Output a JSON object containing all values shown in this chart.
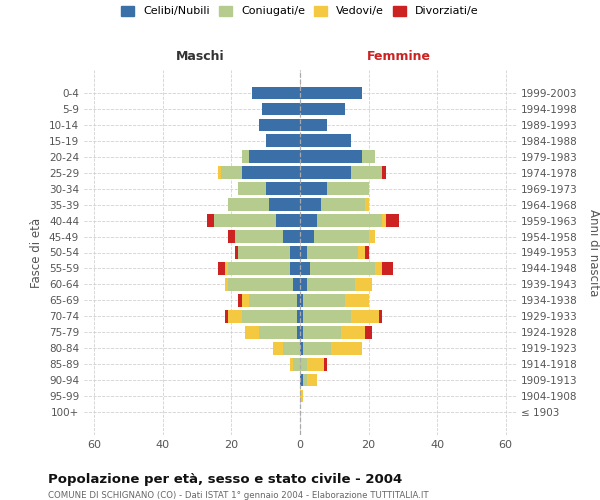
{
  "age_groups": [
    "100+",
    "95-99",
    "90-94",
    "85-89",
    "80-84",
    "75-79",
    "70-74",
    "65-69",
    "60-64",
    "55-59",
    "50-54",
    "45-49",
    "40-44",
    "35-39",
    "30-34",
    "25-29",
    "20-24",
    "15-19",
    "10-14",
    "5-9",
    "0-4"
  ],
  "birth_years": [
    "≤ 1903",
    "1904-1908",
    "1909-1913",
    "1914-1918",
    "1919-1923",
    "1924-1928",
    "1929-1933",
    "1934-1938",
    "1939-1943",
    "1944-1948",
    "1949-1953",
    "1954-1958",
    "1959-1963",
    "1964-1968",
    "1969-1973",
    "1974-1978",
    "1979-1983",
    "1984-1988",
    "1989-1993",
    "1994-1998",
    "1999-2003"
  ],
  "colors": {
    "celibi": "#3a6fa8",
    "coniugati": "#b5cc8e",
    "vedovi": "#f5c842",
    "divorziati": "#cc2222"
  },
  "males": {
    "celibi": [
      0,
      0,
      0,
      0,
      0,
      1,
      1,
      1,
      2,
      3,
      3,
      5,
      7,
      9,
      10,
      17,
      15,
      10,
      12,
      11,
      14
    ],
    "coniugati": [
      0,
      0,
      0,
      2,
      5,
      11,
      16,
      14,
      19,
      18,
      15,
      14,
      18,
      12,
      8,
      6,
      2,
      0,
      0,
      0,
      0
    ],
    "vedovi": [
      0,
      0,
      0,
      1,
      3,
      4,
      4,
      2,
      1,
      1,
      0,
      0,
      0,
      0,
      0,
      1,
      0,
      0,
      0,
      0,
      0
    ],
    "divorziati": [
      0,
      0,
      0,
      0,
      0,
      0,
      1,
      1,
      0,
      2,
      1,
      2,
      2,
      0,
      0,
      0,
      0,
      0,
      0,
      0,
      0
    ]
  },
  "females": {
    "celibi": [
      0,
      0,
      1,
      0,
      1,
      1,
      1,
      1,
      2,
      3,
      2,
      4,
      5,
      6,
      8,
      15,
      18,
      15,
      8,
      13,
      18
    ],
    "coniugati": [
      0,
      0,
      1,
      2,
      8,
      11,
      14,
      12,
      14,
      19,
      15,
      16,
      19,
      13,
      12,
      9,
      4,
      0,
      0,
      0,
      0
    ],
    "vedovi": [
      0,
      1,
      3,
      5,
      9,
      7,
      8,
      7,
      5,
      2,
      2,
      2,
      1,
      1,
      0,
      0,
      0,
      0,
      0,
      0,
      0
    ],
    "divorziati": [
      0,
      0,
      0,
      1,
      0,
      2,
      1,
      0,
      0,
      3,
      1,
      0,
      4,
      0,
      0,
      1,
      0,
      0,
      0,
      0,
      0
    ]
  },
  "xlim": 63,
  "title": "Popolazione per età, sesso e stato civile - 2004",
  "subtitle": "COMUNE DI SCHIGNANO (CO) - Dati ISTAT 1° gennaio 2004 - Elaborazione TUTTITALIA.IT",
  "xlabel_left": "Maschi",
  "xlabel_right": "Femmine",
  "ylabel_left": "Fasce di età",
  "ylabel_right": "Anni di nascita",
  "legend_labels": [
    "Celibi/Nubili",
    "Coniugati/e",
    "Vedovi/e",
    "Divorziati/e"
  ],
  "bg_color": "#ffffff",
  "grid_color": "#cccccc"
}
